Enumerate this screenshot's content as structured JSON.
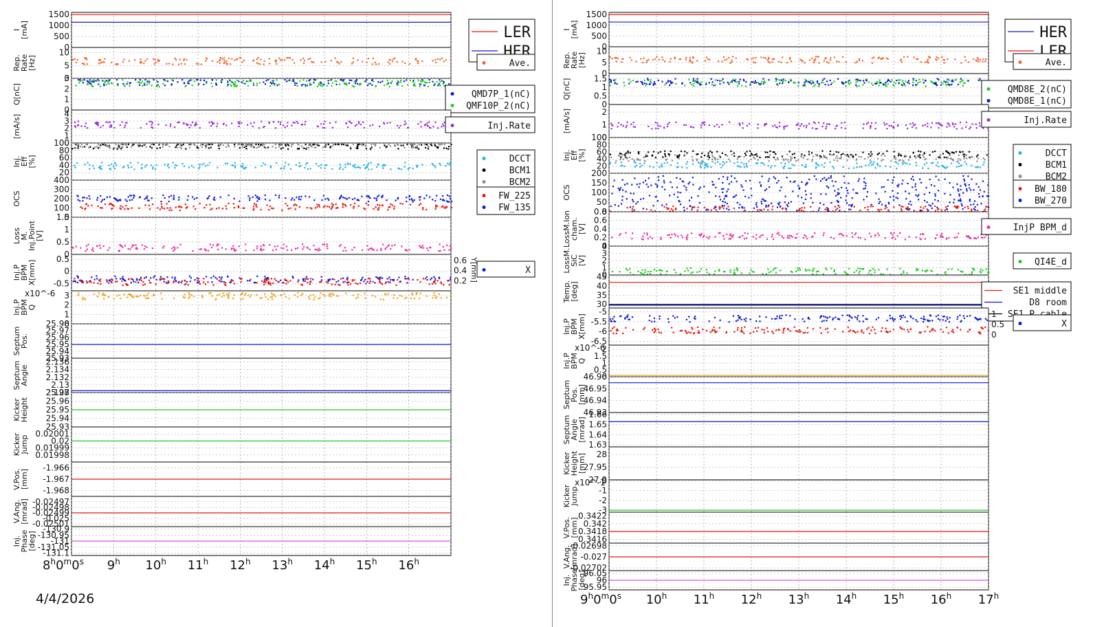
{
  "date_label": "4/4/2026",
  "colors": {
    "red": "#e8150c",
    "blue": "#0b18d8",
    "orange": "#f4642c",
    "green": "#1ccc22",
    "purple": "#9a2bdf",
    "cyan": "#1eb2e6",
    "black": "#000000",
    "gray": "#8c8c8c",
    "pink": "#ef2aa0",
    "amber": "#f4a010",
    "magenta": "#e24ee6"
  },
  "chart_data": [
    {
      "type": "line",
      "title": "",
      "x_ticks": [
        "8h0m0s",
        "9h",
        "10h",
        "11h",
        "12h",
        "13h",
        "14h",
        "15h",
        "16h"
      ],
      "x_range": [
        8,
        17
      ],
      "panels": [
        {
          "ylabel": "I [mA]",
          "yticks": [
            "1500",
            "1000",
            "500",
            "0"
          ],
          "ylim": [
            0,
            1600
          ],
          "series": [
            {
              "name": "LER",
              "color": "red",
              "style": "line",
              "level": 1500
            },
            {
              "name": "HER",
              "color": "blue",
              "style": "line",
              "level": 1150
            }
          ],
          "legend": [
            "LER",
            "HER"
          ],
          "legend_size": "big"
        },
        {
          "ylabel": "Rep. Rate [Hz]",
          "yticks": [
            "10",
            "5",
            "0"
          ],
          "ylim": [
            0,
            12
          ],
          "series": [
            {
              "name": "Ave.",
              "color": "orange",
              "style": "dots",
              "level": 7
            }
          ],
          "legend": [
            "Ave."
          ]
        },
        {
          "ylabel": "Q[nC]",
          "yticks": [
            "3",
            "2",
            "1",
            "0"
          ],
          "ylim": [
            0,
            3
          ],
          "series": [
            {
              "name": "QMD7P_1(nC)",
              "color": "blue",
              "style": "dots",
              "level": 2.7
            },
            {
              "name": "QMF10P_2(nC)",
              "color": "green",
              "style": "dots",
              "level": 2.6
            }
          ],
          "legend": [
            "QMD7P_1(nC)",
            "QMF10P_2(nC)"
          ]
        },
        {
          "ylabel": "[mA/s]",
          "yticks": [
            "4",
            "3",
            "2",
            "1",
            "0"
          ],
          "ylim": [
            0,
            4.5
          ],
          "series": [
            {
              "name": "Inj.Rate",
              "color": "purple",
              "style": "dots",
              "level": 2.6
            }
          ],
          "legend": [
            "Inj.Rate"
          ]
        },
        {
          "ylabel": "Inj. Eff [%]",
          "yticks": [
            "100",
            "80",
            "60",
            "40",
            "20"
          ],
          "ylim": [
            0,
            100
          ],
          "series": [
            {
              "name": "DCCT",
              "color": "cyan",
              "style": "dots",
              "level": 40
            },
            {
              "name": "BCM1",
              "color": "black",
              "style": "dots",
              "level": 95
            },
            {
              "name": "BCM2",
              "color": "gray",
              "style": "dots",
              "level": 97
            }
          ],
          "legend": [
            "DCCT",
            "BCM1",
            "BCM2"
          ]
        },
        {
          "ylabel": "OCS",
          "yticks": [
            "400",
            "300",
            "200",
            "100",
            "0"
          ],
          "ylim": [
            0,
            400
          ],
          "series": [
            {
              "name": "FW_225",
              "color": "red",
              "style": "dots",
              "level": 120
            },
            {
              "name": "FW_135",
              "color": "blue",
              "style": "dots",
              "level": 210
            }
          ],
          "legend": [
            "FW_225",
            "FW_135"
          ]
        },
        {
          "ylabel": "Loss M. Inj.Point [V]",
          "yticks": [
            "1.5",
            "1",
            "0.5",
            "0"
          ],
          "ylim": [
            0,
            1.5
          ],
          "series": [
            {
              "name": "LossM",
              "color": "pink",
              "style": "dots",
              "level": 0.3
            }
          ],
          "legend": []
        },
        {
          "ylabel": "Inj.P BPM X[mm]",
          "yticks": [
            "0.5",
            "0",
            "-0.5"
          ],
          "ylim": [
            -0.8,
            0.7
          ],
          "right_ticks": [
            "0.6",
            "0.4",
            "0.2"
          ],
          "right_label": "Y[mm]",
          "series": [
            {
              "name": "X",
              "color": "blue",
              "style": "dots",
              "level": -0.3
            },
            {
              "name": "Y",
              "color": "red",
              "style": "dots",
              "level": -0.4
            }
          ],
          "legend": [
            "X"
          ]
        },
        {
          "ylabel": "Inj.P BPM Q",
          "yticks": [
            "3",
            "2",
            "1",
            "0"
          ],
          "ylim": [
            0,
            3.5
          ],
          "exponent": "x10^-6",
          "series": [
            {
              "name": "Q",
              "color": "amber",
              "style": "dots",
              "level": 3
            }
          ],
          "legend": []
        },
        {
          "ylabel": "Septum Pos.",
          "yticks": [
            "25.98",
            "25.97",
            "25.96",
            "25.95",
            "25.94",
            "25.93"
          ],
          "ylim": [
            25.93,
            25.98
          ],
          "series": [
            {
              "name": "pos",
              "color": "blue",
              "style": "line",
              "level": 25.95
            }
          ],
          "legend": []
        },
        {
          "ylabel": "Septum Angle",
          "yticks": [
            "2.136",
            "2.134",
            "2.132",
            "2.13",
            "2.128"
          ],
          "ylim": [
            2.128,
            2.137
          ],
          "series": [
            {
              "name": "angle",
              "color": "blue",
              "style": "line",
              "level": 2.1285
            }
          ],
          "legend": []
        },
        {
          "ylabel": "Kicker Height",
          "yticks": [
            "25.97",
            "25.96",
            "25.95",
            "25.94",
            "25.93"
          ],
          "ylim": [
            25.93,
            25.97
          ],
          "series": [
            {
              "name": "height",
              "color": "green",
              "style": "line",
              "level": 25.95
            }
          ],
          "legend": []
        },
        {
          "ylabel": "Kicker Jump",
          "yticks": [
            "0.02001",
            "0.02",
            "0.01999",
            "0.01998"
          ],
          "ylim": [
            0.01997,
            0.02002
          ],
          "series": [
            {
              "name": "jump",
              "color": "green",
              "style": "line",
              "level": 0.02
            }
          ],
          "legend": []
        },
        {
          "ylabel": "V.Pos. [mm]",
          "yticks": [
            "-1.966",
            "-1.967",
            "-1.968"
          ],
          "ylim": [
            -1.9685,
            -1.9655
          ],
          "series": [
            {
              "name": "vpos",
              "color": "red",
              "style": "line",
              "level": -1.967
            }
          ],
          "legend": []
        },
        {
          "ylabel": "V.Ang. [mrad]",
          "yticks": [
            "-0.02501",
            "-0.025",
            "-0.02499",
            "-0.02498",
            "-0.02497"
          ],
          "ylim": [
            -0.025015,
            -0.02496
          ],
          "series": [
            {
              "name": "vang",
              "color": "red",
              "style": "line",
              "level": -0.02499
            }
          ],
          "legend": []
        },
        {
          "ylabel": "Inj. Phase [deg]",
          "yticks": [
            "-130.9",
            "-130.95",
            "-131",
            "-131.05",
            "-131.1"
          ],
          "ylim": [
            -131.12,
            -130.88
          ],
          "series": [
            {
              "name": "phase",
              "color": "magenta",
              "style": "line",
              "level": -131
            }
          ],
          "legend": []
        }
      ]
    },
    {
      "type": "line",
      "title": "",
      "x_ticks": [
        "9h0m0s",
        "10h",
        "11h",
        "12h",
        "13h",
        "14h",
        "15h",
        "16h",
        "17h"
      ],
      "x_range": [
        9,
        17
      ],
      "panels": [
        {
          "ylabel": "I [mA]",
          "yticks": [
            "1500",
            "1000",
            "500",
            "0"
          ],
          "ylim": [
            0,
            1600
          ],
          "series": [
            {
              "name": "HER",
              "color": "blue",
              "style": "line",
              "level": 1150
            },
            {
              "name": "LER",
              "color": "red",
              "style": "line",
              "level": 1500
            }
          ],
          "legend": [
            "HER",
            "LER"
          ],
          "legend_size": "big"
        },
        {
          "ylabel": "Rep. Rate [Hz]",
          "yticks": [
            "10",
            "5",
            "0"
          ],
          "ylim": [
            0,
            12
          ],
          "series": [
            {
              "name": "Ave.",
              "color": "orange",
              "style": "dots",
              "level": 6.5
            }
          ],
          "legend": [
            "Ave."
          ]
        },
        {
          "ylabel": "Q[nC]",
          "yticks": [
            "1.5",
            "1",
            "0.5",
            "0"
          ],
          "ylim": [
            0,
            1.8
          ],
          "series": [
            {
              "name": "QMD8E_2(nC)",
              "color": "green",
              "style": "dots",
              "level": 1.3
            },
            {
              "name": "QMD8E_1(nC)",
              "color": "blue",
              "style": "dots",
              "level": 1.35
            }
          ],
          "legend": [
            "QMD8E_2(nC)",
            "QMD8E_1(nC)"
          ]
        },
        {
          "ylabel": "[mA/s]",
          "yticks": [
            "2",
            "1",
            "0"
          ],
          "ylim": [
            0,
            2.6
          ],
          "series": [
            {
              "name": "Inj.Rate",
              "color": "purple",
              "style": "dots",
              "level": 1
            }
          ],
          "legend": [
            "Inj.Rate"
          ]
        },
        {
          "ylabel": "Inj. Eff [%]",
          "yticks": [
            "100",
            "80",
            "60",
            "40",
            "20"
          ],
          "ylim": [
            0,
            100
          ],
          "series": [
            {
              "name": "DCCT",
              "color": "cyan",
              "style": "dots",
              "level": 25
            },
            {
              "name": "BCM1",
              "color": "black",
              "style": "dots",
              "level": 55
            },
            {
              "name": "BCM2",
              "color": "gray",
              "style": "dots",
              "level": 45
            }
          ],
          "legend": [
            "DCCT",
            "BCM1",
            "BCM2"
          ]
        },
        {
          "ylabel": "OCS",
          "yticks": [
            "200",
            "150",
            "100",
            "50",
            "0"
          ],
          "ylim": [
            0,
            200
          ],
          "series": [
            {
              "name": "BW_180",
              "color": "red",
              "style": "dots",
              "level": 15
            },
            {
              "name": "BW_270",
              "color": "blue",
              "style": "dense",
              "level": 100
            }
          ],
          "legend": [
            "BW_180",
            "BW_270"
          ]
        },
        {
          "ylabel": "LossM.Ion cham. [V]",
          "yticks": [
            "0.8",
            "0.6",
            "0.4",
            "0.2",
            "0"
          ],
          "ylim": [
            0,
            0.8
          ],
          "series": [
            {
              "name": "InjP BPM_d",
              "color": "pink",
              "style": "dots",
              "level": 0.25
            }
          ],
          "legend": [
            "InjP BPM_d"
          ]
        },
        {
          "ylabel": "LossM. SiC [V]",
          "yticks": [
            "4",
            "3",
            "2",
            "1",
            "0"
          ],
          "ylim": [
            0,
            4
          ],
          "series": [
            {
              "name": "QI4E_d",
              "color": "green",
              "style": "dots",
              "level": 0.6
            }
          ],
          "legend": [
            "QI4E_d"
          ]
        },
        {
          "ylabel": "Temp. [deg]",
          "yticks": [
            "45",
            "40",
            "35",
            "30"
          ],
          "ylim": [
            28,
            46
          ],
          "series": [
            {
              "name": "SE1 middle",
              "color": "red",
              "style": "line",
              "level": 42
            },
            {
              "name": "D8 room",
              "color": "blue",
              "style": "line",
              "level": 29.5
            },
            {
              "name": "SE1 P.cable",
              "color": "black",
              "style": "line",
              "level": 30
            }
          ],
          "legend": [
            "SE1 middle",
            "D8 room",
            "SE1 P.cable"
          ]
        },
        {
          "ylabel": "Inj.P BPM X[mm]",
          "yticks": [
            "-5",
            "-5.5",
            "-6",
            "-6.5"
          ],
          "ylim": [
            -6.7,
            -4.8
          ],
          "right_ticks": [
            "1",
            "0.5",
            "0"
          ],
          "series": [
            {
              "name": "X",
              "color": "blue",
              "style": "dots",
              "level": -5.3
            },
            {
              "name": "Y",
              "color": "red",
              "style": "dots",
              "level": -5.9
            }
          ],
          "legend": [
            "X"
          ]
        },
        {
          "ylabel": "Inj.P BPM Q",
          "yticks": [
            "2",
            "1.5",
            "1",
            "0.5",
            "0"
          ],
          "ylim": [
            0,
            2.3
          ],
          "exponent": "x10^-6",
          "series": [
            {
              "name": "Q",
              "color": "amber",
              "style": "line",
              "level": 0.1
            }
          ],
          "legend": []
        },
        {
          "ylabel": "Septum Pos. [mm]",
          "yticks": [
            "46.96",
            "46.95",
            "46.94",
            "46.93"
          ],
          "ylim": [
            46.93,
            46.96
          ],
          "series": [
            {
              "name": "pos",
              "color": "blue",
              "style": "line",
              "level": 46.955
            }
          ],
          "legend": []
        },
        {
          "ylabel": "Septum Angle [mrad]",
          "yticks": [
            "1.66",
            "1.65",
            "1.64",
            "1.63"
          ],
          "ylim": [
            1.628,
            1.662
          ],
          "series": [
            {
              "name": "angle",
              "color": "blue",
              "style": "line",
              "level": 1.653
            }
          ],
          "legend": []
        },
        {
          "ylabel": "Kicker Height [mm]",
          "yticks": [
            "28",
            "27.95",
            "27.9"
          ],
          "ylim": [
            27.9,
            28.03
          ],
          "series": [
            {
              "name": "height",
              "color": "green",
              "style": "line",
              "level": 27.9
            }
          ],
          "legend": []
        },
        {
          "ylabel": "Kicker Jump",
          "yticks": [
            "0",
            "-1",
            "-2",
            "-3"
          ],
          "ylim": [
            -3.2,
            0.1
          ],
          "exponent": "x10^-1",
          "series": [
            {
              "name": "jump",
              "color": "green",
              "style": "line",
              "level": -3
            }
          ],
          "legend": []
        },
        {
          "ylabel": "V.Pos. [mm]",
          "yticks": [
            "0.3422",
            "0.342",
            "0.3418",
            "0.3416"
          ],
          "ylim": [
            0.3415,
            0.3423
          ],
          "series": [
            {
              "name": "vpos",
              "color": "red",
              "style": "line",
              "level": 0.3418
            }
          ],
          "legend": []
        },
        {
          "ylabel": "V.Ang. [mrad]",
          "yticks": [
            "-0.02698",
            "-0.027",
            "-0.02702"
          ],
          "ylim": [
            -0.027025,
            -0.026975
          ],
          "series": [
            {
              "name": "vang",
              "color": "red",
              "style": "line",
              "level": -0.027
            }
          ],
          "legend": []
        },
        {
          "ylabel": "Inj. Phase [deg]",
          "yticks": [
            "96.05",
            "96",
            "95.95"
          ],
          "ylim": [
            95.93,
            96.07
          ],
          "series": [
            {
              "name": "phase",
              "color": "magenta",
              "style": "line",
              "level": 96
            }
          ],
          "legend": []
        }
      ]
    }
  ]
}
